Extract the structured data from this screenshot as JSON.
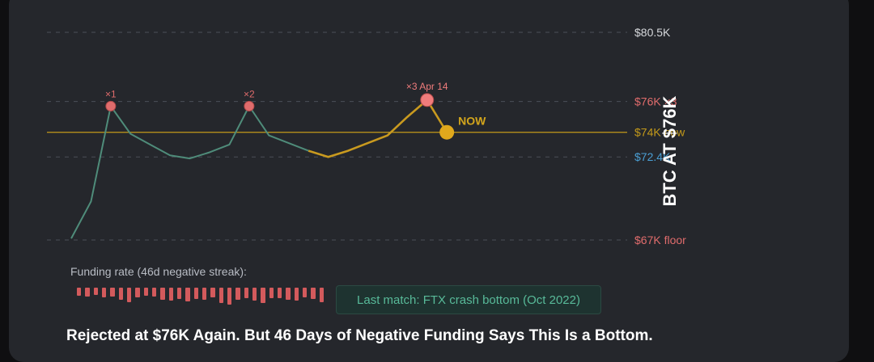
{
  "chart_data": {
    "type": "line",
    "ylim": [
      67,
      80.5
    ],
    "y_levels": [
      {
        "value": 80.5,
        "label": "$80.5K",
        "color": "#d6d8dc",
        "style": "dashed"
      },
      {
        "value": 76,
        "label": "$76K ×3",
        "color": "#e06c6c",
        "style": "dashed"
      },
      {
        "value": 74,
        "label": "$74K now",
        "color": "#c49a1a",
        "style": "solid"
      },
      {
        "value": 72.4,
        "label": "$72.4K",
        "color": "#4a9fd4",
        "style": "dashed"
      },
      {
        "value": 67,
        "label": "$67K floor",
        "color": "#e06c6c",
        "style": "dashed"
      }
    ],
    "series": [
      {
        "color": "#4f8c7a",
        "values": [
          67.1,
          69.5,
          75.7,
          73.9,
          73.2,
          72.5,
          72.3,
          72.7,
          73.2,
          75.7,
          73.8,
          73.3,
          72.8
        ]
      },
      {
        "color": "#c99a1f",
        "values": [
          72.8,
          72.4,
          72.8,
          73.3,
          73.8,
          75.0,
          76.1,
          74.0
        ]
      }
    ],
    "annotations": [
      {
        "label": "×1",
        "point": {
          "series": 0,
          "index": 2
        },
        "color": "#e06c6c"
      },
      {
        "label": "×2",
        "point": {
          "series": 0,
          "index": 9
        },
        "color": "#e06c6c"
      },
      {
        "label": "×3 Apr 14",
        "point": {
          "series": 1,
          "index": 6
        },
        "color": "#f07c7c"
      },
      {
        "label": "NOW",
        "point": {
          "series": 1,
          "index": 7
        },
        "color": "#d3a51c"
      }
    ]
  },
  "funding": {
    "label": "Funding rate (46d negative streak):",
    "values": [
      -0.45,
      -0.5,
      -0.4,
      -0.55,
      -0.48,
      -0.7,
      -0.8,
      -0.55,
      -0.45,
      -0.5,
      -0.7,
      -0.72,
      -0.62,
      -0.75,
      -0.65,
      -0.7,
      -0.55,
      -0.85,
      -0.95,
      -0.7,
      -0.6,
      -0.72,
      -0.85,
      -0.6,
      -0.6,
      -0.68,
      -0.72,
      -0.55,
      -0.65,
      -0.8
    ]
  },
  "match_box": "Last match: FTX crash bottom (Oct 2022)",
  "headline": "Rejected at $76K Again. But 46 Days of Negative Funding Says This Is a Bottom.",
  "side_label": "BTC AT $76K"
}
